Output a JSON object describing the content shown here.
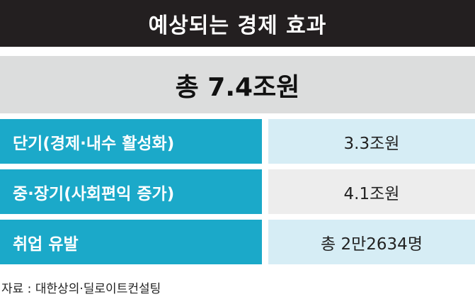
{
  "header": {
    "title": "예상되는 경제 효과"
  },
  "total": {
    "text": "총 7.4조원"
  },
  "rows": [
    {
      "label": "단기(경제·내수 활성화)",
      "value": "3.3조원"
    },
    {
      "label": "중·장기(사회편익 증가)",
      "value": "4.1조원"
    },
    {
      "label": "취업 유발",
      "value": "총 2만2634명"
    }
  ],
  "source": "자료 : 대한상의·딜로이트컨설팅",
  "colors": {
    "header_bg": "#231f20",
    "total_bg": "#dcdddd",
    "label_bg": "#1ba9c9",
    "value_bg_blue": "#d6edf5",
    "value_bg_gray": "#ededed"
  }
}
